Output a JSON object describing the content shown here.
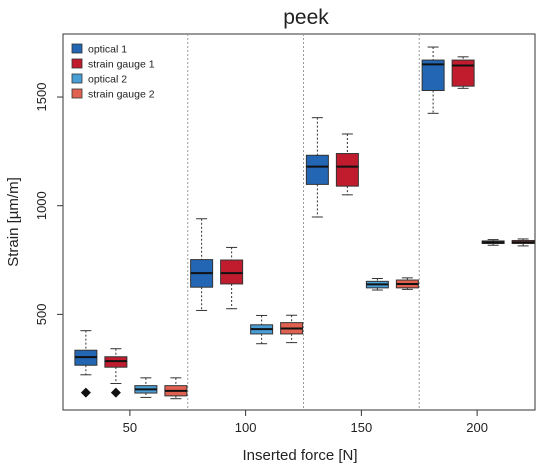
{
  "chart_data": {
    "type": "box",
    "title": "peek",
    "xlabel": "Inserted force [N]",
    "ylabel": "Strain [µm/m]",
    "ylim": [
      60,
      1790
    ],
    "categories": [
      "50",
      "100",
      "150",
      "200"
    ],
    "yticks": [
      500,
      1000,
      1500
    ],
    "grid": "vertical dotted separators between groups",
    "legend_position": "top-left",
    "colors": {
      "optical 1": "#2266b4",
      "strain gauge 1": "#c01c2e",
      "optical 2": "#4a9ed6",
      "strain gauge 2": "#e06150"
    },
    "series": [
      {
        "name": "optical 1",
        "boxes": [
          {
            "category": "50",
            "min": 222,
            "q1": 266,
            "median": 303,
            "q3": 335,
            "max": 425
          },
          {
            "category": "100",
            "min": 518,
            "q1": 625,
            "median": 690,
            "q3": 752,
            "max": 940
          },
          {
            "category": "150",
            "min": 948,
            "q1": 1098,
            "median": 1180,
            "q3": 1232,
            "max": 1405
          },
          {
            "category": "200",
            "min": 1425,
            "q1": 1530,
            "median": 1650,
            "q3": 1670,
            "max": 1730
          }
        ],
        "outliers": [
          {
            "category": "50",
            "value": 140
          }
        ]
      },
      {
        "name": "strain gauge 1",
        "boxes": [
          {
            "category": "50",
            "min": 182,
            "q1": 257,
            "median": 285,
            "q3": 305,
            "max": 342
          },
          {
            "category": "100",
            "min": 526,
            "q1": 640,
            "median": 690,
            "q3": 750,
            "max": 808
          },
          {
            "category": "150",
            "min": 1050,
            "q1": 1090,
            "median": 1180,
            "q3": 1240,
            "max": 1330
          },
          {
            "category": "200",
            "min": 1540,
            "q1": 1550,
            "median": 1645,
            "q3": 1670,
            "max": 1685
          }
        ],
        "outliers": [
          {
            "category": "50",
            "value": 140
          }
        ]
      },
      {
        "name": "optical 2",
        "boxes": [
          {
            "category": "50",
            "min": 118,
            "q1": 138,
            "median": 155,
            "q3": 172,
            "max": 208
          },
          {
            "category": "100",
            "min": 365,
            "q1": 410,
            "median": 432,
            "q3": 452,
            "max": 495
          },
          {
            "category": "150",
            "min": 612,
            "q1": 622,
            "median": 638,
            "q3": 652,
            "max": 665
          },
          {
            "category": "200",
            "min": 818,
            "q1": 826,
            "median": 831,
            "q3": 838,
            "max": 844
          }
        ],
        "outliers": []
      },
      {
        "name": "strain gauge 2",
        "boxes": [
          {
            "category": "50",
            "min": 112,
            "q1": 125,
            "median": 148,
            "q3": 172,
            "max": 208
          },
          {
            "category": "100",
            "min": 370,
            "q1": 410,
            "median": 435,
            "q3": 462,
            "max": 496
          },
          {
            "category": "150",
            "min": 615,
            "q1": 622,
            "median": 640,
            "q3": 658,
            "max": 668
          },
          {
            "category": "200",
            "min": 815,
            "q1": 826,
            "median": 832,
            "q3": 840,
            "max": 847
          }
        ],
        "outliers": []
      }
    ]
  }
}
